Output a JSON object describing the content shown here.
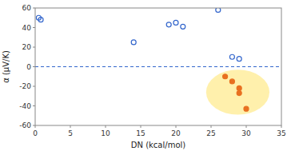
{
  "chart_data": {
    "type": "scatter",
    "series": [
      {
        "color": "#3366cc",
        "marker": "open_circle",
        "x": [
          0.5,
          0.8,
          14,
          19,
          20,
          21,
          26,
          28,
          29
        ],
        "values": [
          50,
          48,
          25,
          43,
          45,
          41,
          58,
          10,
          8
        ]
      },
      {
        "color": "#e87020",
        "marker": "circle",
        "x": [
          27,
          28,
          29,
          29,
          30
        ],
        "values": [
          -10,
          -15,
          -22,
          -27,
          -43
        ]
      }
    ],
    "highlight": {
      "cx": 28.8,
      "cy": -26,
      "width": 9.0,
      "height": 46,
      "color": "#ffe880"
    },
    "reference_lines": [
      {
        "y": 0,
        "color": "#3366cc",
        "line_style": "dashed"
      }
    ],
    "x_label": "DN (kcal/mol)",
    "y_label": "α (μV/K)",
    "xlim": [
      0,
      35
    ],
    "ylim": [
      -60,
      60
    ],
    "xticks": [
      0,
      5,
      10,
      15,
      20,
      25,
      30,
      35
    ],
    "yticks": [
      -60,
      -40,
      -20,
      0,
      20,
      40,
      60
    ],
    "grid": false
  }
}
